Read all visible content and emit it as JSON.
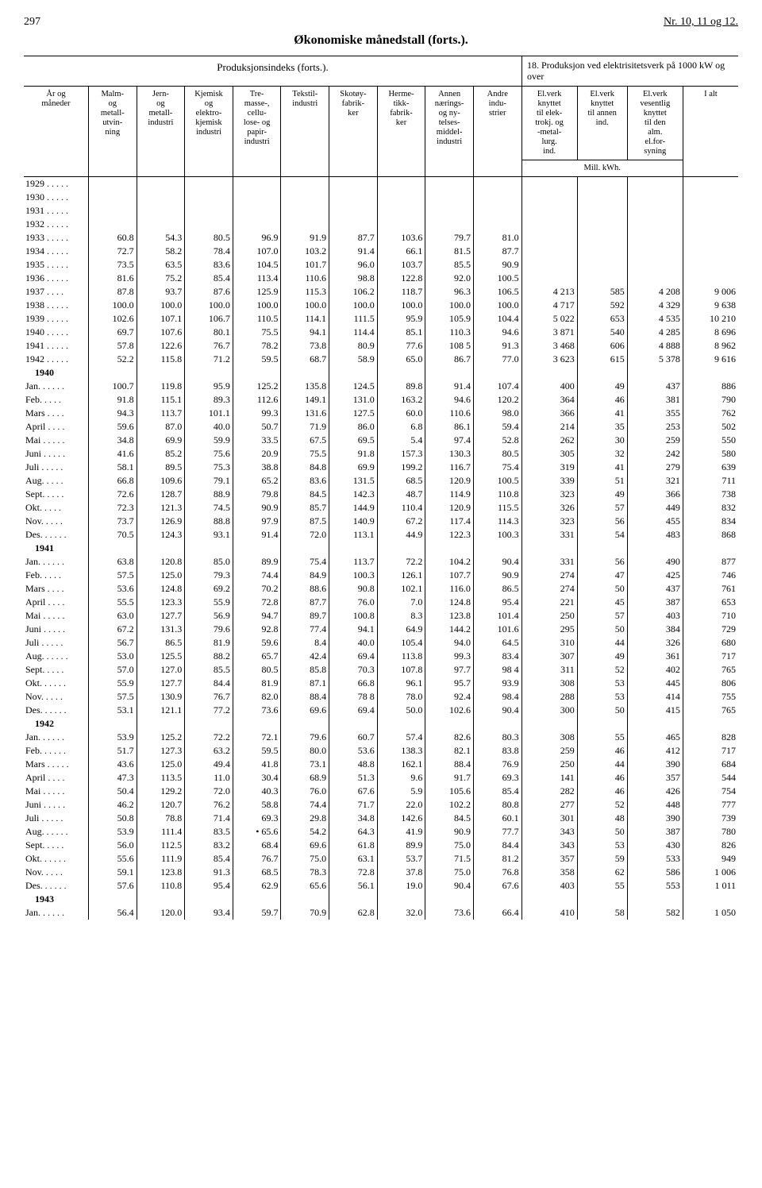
{
  "page_num_left": "297",
  "page_num_right": "Nr. 10, 11 og 12.",
  "title": "Økonomiske månedstall (forts.).",
  "super_left": "Produksjonsindeks (forts.).",
  "super_right": "18. Produksjon ved elektrisitetsverk på 1000 kW og over",
  "headers": {
    "period": "År og\nmåneder",
    "c1": "Malm-\nog\nmetall-\nutvin-\nning",
    "c2": "Jern-\nog\nmetall-\nindustri",
    "c3": "Kjemisk\nog\nelektro-\nkjemisk\nindustri",
    "c4": "Tre-\nmasse-,\ncellu-\nlose- og\npapir-\nindustri",
    "c5": "Tekstil-\nindustri",
    "c6": "Skotøy-\nfabrik-\nker",
    "c7": "Herme-\ntikk-\nfabrik-\nker",
    "c8": "Annen\nnærings-\nog ny-\ntelses-\nmiddel-\nindustri",
    "c9": "Andre\nindu-\nstrier",
    "c10": "El.verk\nknyttet\ntil elek-\ntrokj. og\n-metal-\nlurg.\nind.",
    "c11": "El.verk\nknyttet\ntil annen\nind.",
    "c12": "El.verk\nvesentlig\nknyttet\ntil den\nalm.\nel.for-\nsyning",
    "c13": "I alt",
    "mill_kwh": "Mill. kWh."
  },
  "rows": [
    {
      "label": "1929 . . . . .",
      "v": [
        "",
        "",
        "",
        "",
        "",
        "",
        "",
        "",
        "",
        "",
        "",
        "",
        ""
      ]
    },
    {
      "label": "1930 . . . . .",
      "v": [
        "",
        "",
        "",
        "",
        "",
        "",
        "",
        "",
        "",
        "",
        "",
        "",
        ""
      ]
    },
    {
      "label": "1931 . . . . .",
      "v": [
        "",
        "",
        "",
        "",
        "",
        "",
        "",
        "",
        "",
        "",
        "",
        "",
        ""
      ]
    },
    {
      "label": "1932 . . . . .",
      "v": [
        "",
        "",
        "",
        "",
        "",
        "",
        "",
        "",
        "",
        "",
        "",
        "",
        ""
      ]
    },
    {
      "label": "1933 . . . . .",
      "v": [
        "60.8",
        "54.3",
        "80.5",
        "96.9",
        "91.9",
        "87.7",
        "103.6",
        "79.7",
        "81.0",
        "",
        "",
        "",
        ""
      ]
    },
    {
      "label": "1934 . . . . .",
      "v": [
        "72.7",
        "58.2",
        "78.4",
        "107.0",
        "103.2",
        "91.4",
        "66.1",
        "81.5",
        "87.7",
        "",
        "",
        "",
        ""
      ]
    },
    {
      "label": "1935 . . . . .",
      "v": [
        "73.5",
        "63.5",
        "83.6",
        "104.5",
        "101.7",
        "96.0",
        "103.7",
        "85.5",
        "90.9",
        "",
        "",
        "",
        ""
      ]
    },
    {
      "label": "1936 . . . . .",
      "v": [
        "81.6",
        "75.2",
        "85.4",
        "113.4",
        "110.6",
        "98.8",
        "122.8",
        "92.0",
        "100.5",
        "",
        "",
        "",
        ""
      ]
    },
    {
      "label": "1937 . . . .",
      "v": [
        "87.8",
        "93.7",
        "87.6",
        "125.9",
        "115.3",
        "106.2",
        "118.7",
        "96.3",
        "106.5",
        "4 213",
        "585",
        "4 208",
        "9 006"
      ]
    },
    {
      "label": "1938 . . . . .",
      "v": [
        "100.0",
        "100.0",
        "100.0",
        "100.0",
        "100.0",
        "100.0",
        "100.0",
        "100.0",
        "100.0",
        "4 717",
        "592",
        "4 329",
        "9 638"
      ]
    },
    {
      "label": "1939 . . . . .",
      "v": [
        "102.6",
        "107.1",
        "106.7",
        "110.5",
        "114.1",
        "111.5",
        "95.9",
        "105.9",
        "104.4",
        "5 022",
        "653",
        "4 535",
        "10 210"
      ]
    },
    {
      "label": "1940 . . . . .",
      "v": [
        "69.7",
        "107.6",
        "80.1",
        "75.5",
        "94.1",
        "114.4",
        "85.1",
        "110.3",
        "94.6",
        "3 871",
        "540",
        "4 285",
        "8 696"
      ]
    },
    {
      "label": "1941 . . . . .",
      "v": [
        "57.8",
        "122.6",
        "76.7",
        "78.2",
        "73.8",
        "80.9",
        "77.6",
        "108 5",
        "91.3",
        "3 468",
        "606",
        "4 888",
        "8 962"
      ]
    },
    {
      "label": "1942 . . . . .",
      "v": [
        "52.2",
        "115.8",
        "71.2",
        "59.5",
        "68.7",
        "58.9",
        "65.0",
        "86.7",
        "77.0",
        "3 623",
        "615",
        "5 378",
        "9 616"
      ]
    },
    {
      "label": "1940",
      "v": [
        "",
        "",
        "",
        "",
        "",
        "",
        "",
        "",
        "",
        "",
        "",
        "",
        ""
      ],
      "bold": true
    },
    {
      "label": "Jan. . . . . .",
      "v": [
        "100.7",
        "119.8",
        "95.9",
        "125.2",
        "135.8",
        "124.5",
        "89.8",
        "91.4",
        "107.4",
        "400",
        "49",
        "437",
        "886"
      ]
    },
    {
      "label": "Feb. . . . .",
      "v": [
        "91.8",
        "115.1",
        "89.3",
        "112.6",
        "149.1",
        "131.0",
        "163.2",
        "94.6",
        "120.2",
        "364",
        "46",
        "381",
        "790"
      ]
    },
    {
      "label": "Mars . . . .",
      "v": [
        "94.3",
        "113.7",
        "101.1",
        "99.3",
        "131.6",
        "127.5",
        "60.0",
        "110.6",
        "98.0",
        "366",
        "41",
        "355",
        "762"
      ]
    },
    {
      "label": "April . . . .",
      "v": [
        "59.6",
        "87.0",
        "40.0",
        "50.7",
        "71.9",
        "86.0",
        "6.8",
        "86.1",
        "59.4",
        "214",
        "35",
        "253",
        "502"
      ]
    },
    {
      "label": "Mai . . . . .",
      "v": [
        "34.8",
        "69.9",
        "59.9",
        "33.5",
        "67.5",
        "69.5",
        "5.4",
        "97.4",
        "52.8",
        "262",
        "30",
        "259",
        "550"
      ]
    },
    {
      "label": "Juni . . . . .",
      "v": [
        "41.6",
        "85.2",
        "75.6",
        "20.9",
        "75.5",
        "91.8",
        "157.3",
        "130.3",
        "80.5",
        "305",
        "32",
        "242",
        "580"
      ]
    },
    {
      "label": "Juli . . . . .",
      "v": [
        "58.1",
        "89.5",
        "75.3",
        "38.8",
        "84.8",
        "69.9",
        "199.2",
        "116.7",
        "75.4",
        "319",
        "41",
        "279",
        "639"
      ]
    },
    {
      "label": "Aug. . . . .",
      "v": [
        "66.8",
        "109.6",
        "79.1",
        "65.2",
        "83.6",
        "131.5",
        "68.5",
        "120.9",
        "100.5",
        "339",
        "51",
        "321",
        "711"
      ]
    },
    {
      "label": "Sept. . . . .",
      "v": [
        "72.6",
        "128.7",
        "88.9",
        "79.8",
        "84.5",
        "142.3",
        "48.7",
        "114.9",
        "110.8",
        "323",
        "49",
        "366",
        "738"
      ]
    },
    {
      "label": "Okt. . . . .",
      "v": [
        "72.3",
        "121.3",
        "74.5",
        "90.9",
        "85.7",
        "144.9",
        "110.4",
        "120.9",
        "115.5",
        "326",
        "57",
        "449",
        "832"
      ]
    },
    {
      "label": "Nov. . . . .",
      "v": [
        "73.7",
        "126.9",
        "88.8",
        "97.9",
        "87.5",
        "140.9",
        "67.2",
        "117.4",
        "114.3",
        "323",
        "56",
        "455",
        "834"
      ]
    },
    {
      "label": "Des. . . . . .",
      "v": [
        "70.5",
        "124.3",
        "93.1",
        "91.4",
        "72.0",
        "113.1",
        "44.9",
        "122.3",
        "100.3",
        "331",
        "54",
        "483",
        "868"
      ]
    },
    {
      "label": "1941",
      "v": [
        "",
        "",
        "",
        "",
        "",
        "",
        "",
        "",
        "",
        "",
        "",
        "",
        ""
      ],
      "bold": true
    },
    {
      "label": "Jan. . . . . .",
      "v": [
        "63.8",
        "120.8",
        "85.0",
        "89.9",
        "75.4",
        "113.7",
        "72.2",
        "104.2",
        "90.4",
        "331",
        "56",
        "490",
        "877"
      ]
    },
    {
      "label": "Feb. . . . .",
      "v": [
        "57.5",
        "125.0",
        "79.3",
        "74.4",
        "84.9",
        "100.3",
        "126.1",
        "107.7",
        "90.9",
        "274",
        "47",
        "425",
        "746"
      ]
    },
    {
      "label": "Mars . . . .",
      "v": [
        "53.6",
        "124.8",
        "69.2",
        "70.2",
        "88.6",
        "90.8",
        "102.1",
        "116.0",
        "86.5",
        "274",
        "50",
        "437",
        "761"
      ]
    },
    {
      "label": "April . . . .",
      "v": [
        "55.5",
        "123.3",
        "55.9",
        "72.8",
        "87.7",
        "76.0",
        "7.0",
        "124.8",
        "95.4",
        "221",
        "45",
        "387",
        "653"
      ]
    },
    {
      "label": "Mai . . . . .",
      "v": [
        "63.0",
        "127.7",
        "56.9",
        "94.7",
        "89.7",
        "100.8",
        "8.3",
        "123.8",
        "101.4",
        "250",
        "57",
        "403",
        "710"
      ]
    },
    {
      "label": "Juni . . . . .",
      "v": [
        "67.2",
        "131.3",
        "79.6",
        "92.8",
        "77.4",
        "94.1",
        "64.9",
        "144.2",
        "101.6",
        "295",
        "50",
        "384",
        "729"
      ]
    },
    {
      "label": "Juli . . . . .",
      "v": [
        "56.7",
        "86.5",
        "81.9",
        "59.6",
        "8.4",
        "40.0",
        "105.4",
        "94.0",
        "64.5",
        "310",
        "44",
        "326",
        "680"
      ]
    },
    {
      "label": "Aug. . . . . .",
      "v": [
        "53.0",
        "125.5",
        "88.2",
        "65.7",
        "42.4",
        "69.4",
        "113.8",
        "99.3",
        "83.4",
        "307",
        "49",
        "361",
        "717"
      ]
    },
    {
      "label": "Sept. . . . .",
      "v": [
        "57.0",
        "127.0",
        "85.5",
        "80.5",
        "85.8",
        "70.3",
        "107.8",
        "97.7",
        "98 4",
        "311",
        "52",
        "402",
        "765"
      ]
    },
    {
      "label": "Okt. . . . . .",
      "v": [
        "55.9",
        "127.7",
        "84.4",
        "81.9",
        "87.1",
        "66.8",
        "96.1",
        "95.7",
        "93.9",
        "308",
        "53",
        "445",
        "806"
      ]
    },
    {
      "label": "Nov. . . . .",
      "v": [
        "57.5",
        "130.9",
        "76.7",
        "82.0",
        "88.4",
        "78 8",
        "78.0",
        "92.4",
        "98.4",
        "288",
        "53",
        "414",
        "755"
      ]
    },
    {
      "label": "Des. . . . . .",
      "v": [
        "53.1",
        "121.1",
        "77.2",
        "73.6",
        "69.6",
        "69.4",
        "50.0",
        "102.6",
        "90.4",
        "300",
        "50",
        "415",
        "765"
      ]
    },
    {
      "label": "1942",
      "v": [
        "",
        "",
        "",
        "",
        "",
        "",
        "",
        "",
        "",
        "",
        "",
        "",
        ""
      ],
      "bold": true
    },
    {
      "label": "Jan. . . . . .",
      "v": [
        "53.9",
        "125.2",
        "72.2",
        "72.1",
        "79.6",
        "60.7",
        "57.4",
        "82.6",
        "80.3",
        "308",
        "55",
        "465",
        "828"
      ]
    },
    {
      "label": "Feb. . . . . .",
      "v": [
        "51.7",
        "127.3",
        "63.2",
        "59.5",
        "80.0",
        "53.6",
        "138.3",
        "82.1",
        "83.8",
        "259",
        "46",
        "412",
        "717"
      ]
    },
    {
      "label": "Mars . . . . .",
      "v": [
        "43.6",
        "125.0",
        "49.4",
        "41.8",
        "73.1",
        "48.8",
        "162.1",
        "88.4",
        "76.9",
        "250",
        "44",
        "390",
        "684"
      ]
    },
    {
      "label": "April . . . .",
      "v": [
        "47.3",
        "113.5",
        "11.0",
        "30.4",
        "68.9",
        "51.3",
        "9.6",
        "91.7",
        "69.3",
        "141",
        "46",
        "357",
        "544"
      ]
    },
    {
      "label": "Mai . . . . .",
      "v": [
        "50.4",
        "129.2",
        "72.0",
        "40.3",
        "76.0",
        "67.6",
        "5.9",
        "105.6",
        "85.4",
        "282",
        "46",
        "426",
        "754"
      ]
    },
    {
      "label": "Juni . . . . .",
      "v": [
        "46.2",
        "120.7",
        "76.2",
        "58.8",
        "74.4",
        "71.7",
        "22.0",
        "102.2",
        "80.8",
        "277",
        "52",
        "448",
        "777"
      ]
    },
    {
      "label": "Juli . . . . .",
      "v": [
        "50.8",
        "78.8",
        "71.4",
        "69.3",
        "29.8",
        "34.8",
        "142.6",
        "84.5",
        "60.1",
        "301",
        "48",
        "390",
        "739"
      ]
    },
    {
      "label": "Aug. . . . . .",
      "v": [
        "53.9",
        "111.4",
        "83.5",
        "• 65.6",
        "54.2",
        "64.3",
        "41.9",
        "90.9",
        "77.7",
        "343",
        "50",
        "387",
        "780"
      ]
    },
    {
      "label": "Sept. . . . .",
      "v": [
        "56.0",
        "112.5",
        "83.2",
        "68.4",
        "69.6",
        "61.8",
        "89.9",
        "75.0",
        "84.4",
        "343",
        "53",
        "430",
        "826"
      ]
    },
    {
      "label": "Okt. . . . . .",
      "v": [
        "55.6",
        "111.9",
        "85.4",
        "76.7",
        "75.0",
        "63.1",
        "53.7",
        "71.5",
        "81.2",
        "357",
        "59",
        "533",
        "949"
      ]
    },
    {
      "label": "Nov. . . . .",
      "v": [
        "59.1",
        "123.8",
        "91.3",
        "68.5",
        "78.3",
        "72.8",
        "37.8",
        "75.0",
        "76.8",
        "358",
        "62",
        "586",
        "1 006"
      ]
    },
    {
      "label": "Des. . . . . .",
      "v": [
        "57.6",
        "110.8",
        "95.4",
        "62.9",
        "65.6",
        "56.1",
        "19.0",
        "90.4",
        "67.6",
        "403",
        "55",
        "553",
        "1 011"
      ]
    },
    {
      "label": "1943",
      "v": [
        "",
        "",
        "",
        "",
        "",
        "",
        "",
        "",
        "",
        "",
        "",
        "",
        ""
      ],
      "bold": true
    },
    {
      "label": "Jan. . . . . .",
      "v": [
        "56.4",
        "120.0",
        "93.4",
        "59.7",
        "70.9",
        "62.8",
        "32.0",
        "73.6",
        "66.4",
        "410",
        "58",
        "582",
        "1 050"
      ]
    }
  ]
}
